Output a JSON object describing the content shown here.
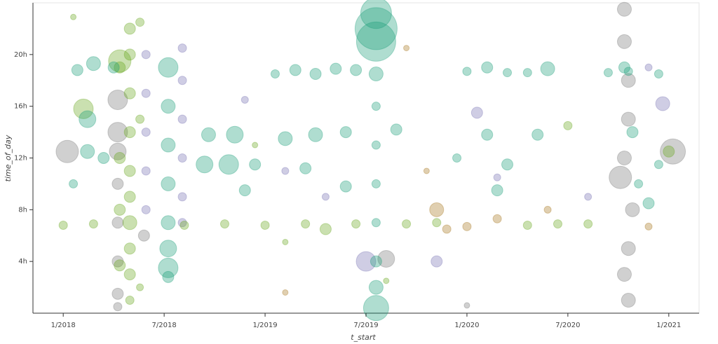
{
  "chart_data": {
    "type": "scatter",
    "xlabel": "t_start",
    "ylabel": "time_of_day",
    "xlim": [
      2017.85,
      2021.15
    ],
    "ylim": [
      0,
      24
    ],
    "xticks": [
      {
        "value": 2018.0,
        "label": "1/2018"
      },
      {
        "value": 2018.5,
        "label": "7/2018"
      },
      {
        "value": 2019.0,
        "label": "1/2019"
      },
      {
        "value": 2019.5,
        "label": "7/2019"
      },
      {
        "value": 2020.0,
        "label": "1/2020"
      },
      {
        "value": 2020.5,
        "label": "7/2020"
      },
      {
        "value": 2021.0,
        "label": "1/2021"
      }
    ],
    "yticks": [
      {
        "value": 4,
        "label": "4h"
      },
      {
        "value": 8,
        "label": "8h"
      },
      {
        "value": 12,
        "label": "12h"
      },
      {
        "value": 16,
        "label": "16h"
      },
      {
        "value": 20,
        "label": "20h"
      }
    ],
    "opacity": 0.35,
    "series": [
      {
        "color": "#777777",
        "x": [
          2018.27,
          2018.27,
          2018.27,
          2018.27,
          2018.27,
          2018.27,
          2018.27,
          2018.27,
          2018.02,
          2020.78,
          2020.78,
          2020.8,
          2020.8,
          2020.78,
          2020.76,
          2020.82,
          2020.8,
          2020.78,
          2020.8,
          2021.02,
          2018.4,
          2020.0,
          2019.6
        ],
        "y": [
          16.5,
          14,
          12.5,
          10,
          7,
          4,
          1.5,
          0.5,
          12.5,
          23.5,
          21,
          18,
          15,
          12,
          10.5,
          8,
          5,
          3,
          1,
          12.5,
          6,
          0.6,
          4.2
        ],
        "sizes": [
          14,
          14,
          12,
          8,
          8,
          8,
          8,
          6,
          16,
          10,
          10,
          10,
          10,
          10,
          16,
          10,
          10,
          10,
          10,
          18,
          8,
          4,
          12
        ]
      },
      {
        "color": "#7570b3",
        "x": [
          2018.41,
          2018.41,
          2018.41,
          2018.41,
          2018.41,
          2018.59,
          2018.59,
          2018.59,
          2018.59,
          2018.59,
          2018.59,
          2019.5,
          2019.85,
          2020.05,
          2020.9,
          2020.97,
          2019.1,
          2019.3,
          2020.15,
          2018.9,
          2020.6
        ],
        "y": [
          20,
          17,
          14,
          11,
          8,
          20.5,
          18,
          15,
          12,
          9,
          7,
          4,
          4,
          15.5,
          19,
          16.2,
          11,
          9,
          10.5,
          16.5,
          9
        ],
        "sizes": [
          6,
          6,
          6,
          6,
          6,
          6,
          6,
          6,
          6,
          6,
          6,
          14,
          8,
          8,
          5,
          10,
          5,
          5,
          5,
          5,
          5
        ]
      },
      {
        "color": "#a6761d",
        "x": [
          2019.85,
          2019.9,
          2020.0,
          2020.15,
          2019.7,
          2019.1,
          2020.4,
          2020.9,
          2019.8
        ],
        "y": [
          8,
          6.5,
          6.7,
          7.3,
          20.5,
          1.6,
          8,
          6.7,
          11
        ],
        "sizes": [
          10,
          6,
          6,
          6,
          4,
          4,
          5,
          5,
          4
        ]
      },
      {
        "color": "#66a61e",
        "x": [
          2018.33,
          2018.33,
          2018.33,
          2018.33,
          2018.33,
          2018.33,
          2018.33,
          2018.33,
          2018.33,
          2018.33,
          2018.38,
          2018.38,
          2018.38,
          2018.28,
          2018.28,
          2018.28,
          2018.0,
          2018.15,
          2018.6,
          2018.8,
          2019.0,
          2019.2,
          2019.3,
          2019.45,
          2019.7,
          2019.85,
          2020.3,
          2020.45,
          2020.6,
          2018.1,
          2018.28,
          2018.28,
          2020.5,
          2021.0,
          2018.05,
          2019.1,
          2019.6,
          2018.95
        ],
        "y": [
          22,
          20,
          17,
          14,
          11,
          9,
          7,
          5,
          3,
          1,
          22.5,
          15,
          2,
          19,
          12,
          8,
          6.8,
          6.9,
          6.8,
          6.9,
          6.8,
          6.9,
          6.5,
          6.9,
          6.9,
          7.0,
          6.8,
          6.9,
          6.9,
          15.8,
          19.5,
          3.7,
          14.5,
          12.5,
          22.9,
          5.5,
          2.5,
          13
        ],
        "sizes": [
          8,
          8,
          8,
          8,
          8,
          8,
          10,
          8,
          8,
          6,
          6,
          6,
          5,
          8,
          8,
          8,
          6,
          6,
          6,
          6,
          6,
          6,
          8,
          6,
          6,
          6,
          6,
          6,
          6,
          14,
          16,
          8,
          6,
          8,
          4,
          4,
          4,
          4
        ]
      },
      {
        "color": "#1b9e77",
        "x": [
          2019.55,
          2019.55,
          2019.55,
          2019.55,
          2019.55,
          2019.55,
          2019.55,
          2019.55,
          2019.55,
          2019.55,
          2019.55,
          2018.07,
          2018.15,
          2018.25,
          2019.05,
          2019.15,
          2019.25,
          2019.35,
          2019.45,
          2020.0,
          2020.1,
          2020.2,
          2020.3,
          2020.4,
          2020.7,
          2020.8,
          2020.95,
          2018.72,
          2018.85,
          2018.95,
          2019.1,
          2019.25,
          2019.4,
          2018.82,
          2018.7,
          2019.2,
          2019.65,
          2019.95,
          2020.1,
          2020.2,
          2020.35,
          2020.15,
          2018.9,
          2019.4,
          2018.52,
          2018.52,
          2018.52,
          2018.52,
          2018.52,
          2018.52,
          2018.52,
          2018.52,
          2020.78,
          2020.82,
          2020.85,
          2020.9,
          2020.95,
          2018.12,
          2018.2,
          2018.05,
          2018.12
        ],
        "y": [
          22,
          21,
          23.2,
          18.5,
          16,
          13,
          10,
          7,
          4,
          2,
          0.4,
          18.8,
          19.3,
          19,
          18.5,
          18.8,
          18.5,
          18.9,
          18.8,
          18.7,
          19,
          18.6,
          18.6,
          18.9,
          18.6,
          18.7,
          18.5,
          13.8,
          13.8,
          11.5,
          13.5,
          13.8,
          14,
          11.5,
          11.5,
          11.2,
          14.2,
          12,
          13.8,
          11.5,
          13.8,
          9.5,
          9.5,
          9.8,
          19,
          16,
          13,
          10,
          7,
          5,
          3.5,
          2.8,
          19,
          14,
          10,
          8.5,
          11.5,
          15,
          12,
          10,
          12.5
        ],
        "sizes": [
          30,
          28,
          22,
          10,
          6,
          6,
          6,
          6,
          8,
          10,
          18,
          8,
          10,
          8,
          6,
          8,
          8,
          8,
          8,
          6,
          8,
          6,
          6,
          10,
          6,
          6,
          6,
          10,
          12,
          8,
          10,
          10,
          8,
          14,
          12,
          8,
          8,
          6,
          8,
          8,
          8,
          8,
          8,
          8,
          14,
          10,
          10,
          10,
          10,
          12,
          14,
          8,
          8,
          8,
          6,
          8,
          6,
          12,
          8,
          6,
          10
        ]
      }
    ]
  }
}
